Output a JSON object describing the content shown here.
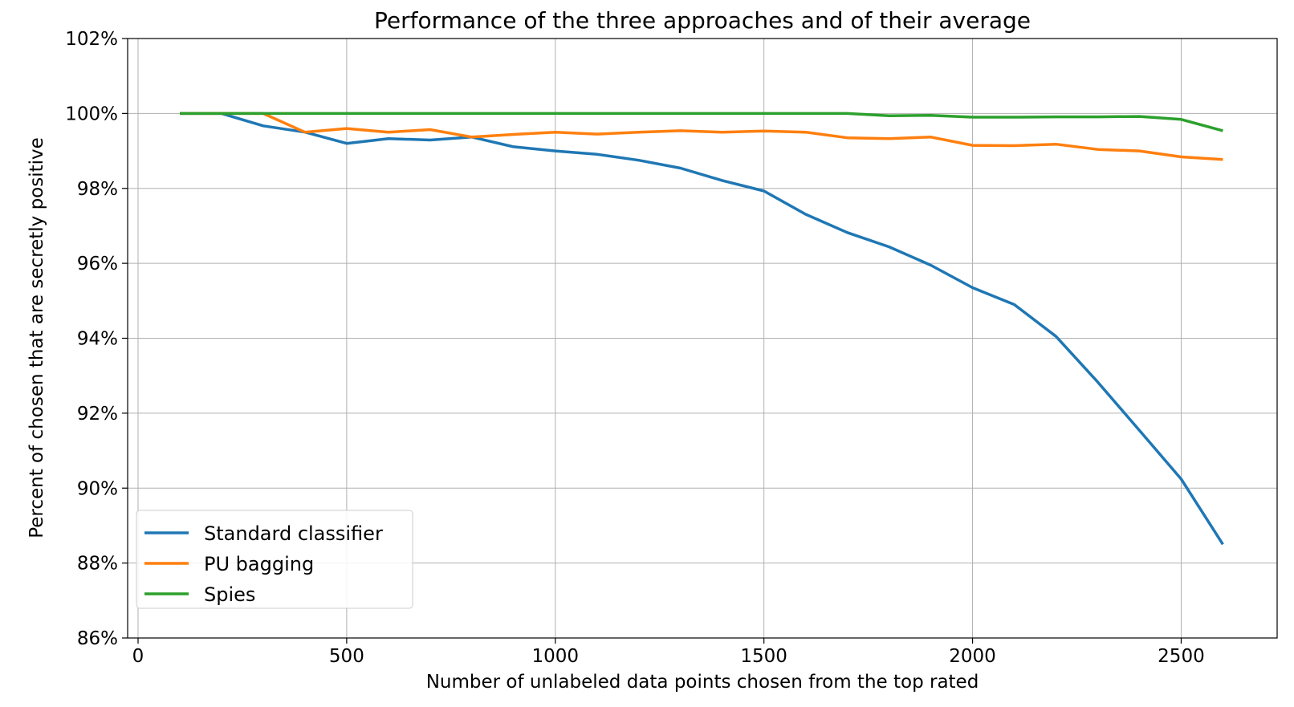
{
  "chart_data": {
    "type": "line",
    "title": "Performance of the three approaches and of their average",
    "xlabel": "Number of unlabeled data points chosen from the top rated",
    "ylabel": "Percent of chosen that are secretly positive",
    "xlim": [
      -25,
      2730
    ],
    "ylim": [
      86,
      102
    ],
    "xticks": [
      0,
      500,
      1000,
      1500,
      2000,
      2500
    ],
    "xtick_labels": [
      "0",
      "500",
      "1000",
      "1500",
      "2000",
      "2500"
    ],
    "yticks": [
      86,
      88,
      90,
      92,
      94,
      96,
      98,
      100,
      102
    ],
    "ytick_labels": [
      "86%",
      "88%",
      "90%",
      "92%",
      "94%",
      "96%",
      "98%",
      "100%",
      "102%"
    ],
    "grid": true,
    "legend_position": "lower-left",
    "x": [
      100,
      200,
      300,
      400,
      500,
      600,
      700,
      800,
      900,
      1000,
      1100,
      1200,
      1300,
      1400,
      1500,
      1600,
      1700,
      1800,
      1900,
      2000,
      2100,
      2200,
      2300,
      2400,
      2500,
      2600
    ],
    "series": [
      {
        "name": "Standard classifier",
        "color": "#1f77b4",
        "values": [
          100,
          100,
          99.67,
          99.5,
          99.2,
          99.33,
          99.29,
          99.37,
          99.11,
          99.0,
          98.91,
          98.75,
          98.54,
          98.21,
          97.93,
          97.31,
          96.82,
          96.44,
          95.95,
          95.35,
          94.9,
          94.05,
          92.83,
          91.54,
          90.24,
          88.5
        ]
      },
      {
        "name": "PU bagging",
        "color": "#ff7f0e",
        "values": [
          100,
          100,
          100,
          99.5,
          99.6,
          99.5,
          99.57,
          99.37,
          99.44,
          99.5,
          99.45,
          99.5,
          99.54,
          99.5,
          99.53,
          99.5,
          99.35,
          99.33,
          99.37,
          99.15,
          99.14,
          99.18,
          99.04,
          99.0,
          98.84,
          98.77
        ]
      },
      {
        "name": "Spies",
        "color": "#2ca02c",
        "values": [
          100,
          100,
          100,
          100,
          100,
          100,
          100,
          100,
          100,
          100,
          100,
          100,
          100,
          100,
          100,
          100,
          100,
          99.94,
          99.95,
          99.9,
          99.9,
          99.91,
          99.91,
          99.92,
          99.84,
          99.54
        ]
      }
    ]
  }
}
